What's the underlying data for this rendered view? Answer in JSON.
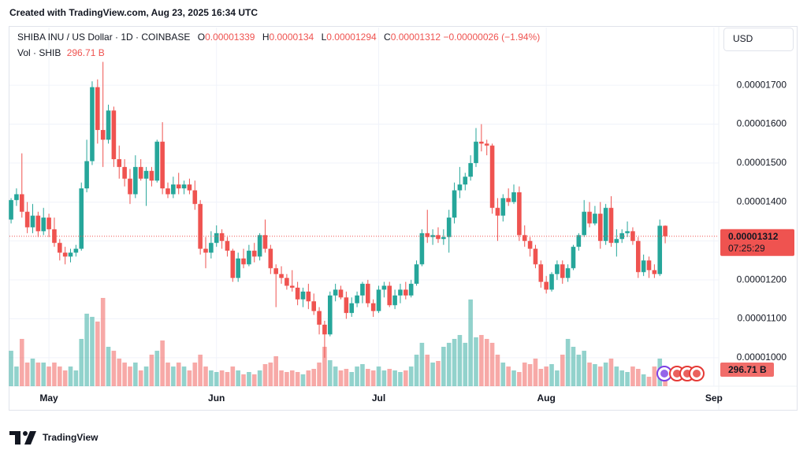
{
  "watermark": "Created with TradingView.com, Aug 23, 2025 16:34 UTC",
  "brand": "TradingView",
  "currency_button": "USD",
  "chart_data": {
    "type": "candlestick",
    "title": "SHIBA INU / US Dollar · 1D · COINBASE",
    "ohlc_labels": [
      "O",
      "H",
      "L",
      "C"
    ],
    "change": "−0.00000026 (−1.94%)",
    "countdown": "07:25:29",
    "up_color": "#26a69a",
    "down_color": "#ef5350",
    "xlim": [
      -0.3,
      130.9
    ],
    "xticks": [
      {
        "value": 7,
        "label": "May"
      },
      {
        "value": 38,
        "label": "Jun"
      },
      {
        "value": 68,
        "label": "Jul"
      },
      {
        "value": 99,
        "label": "Aug"
      },
      {
        "value": 130,
        "label": "Sep"
      }
    ],
    "ylim": [
      9.27e-06,
      1.848e-05
    ],
    "yticks": [
      {
        "value": 1e-05,
        "label": "0.00001000"
      },
      {
        "value": 1.1e-05,
        "label": "0.00001100"
      },
      {
        "value": 1.2e-05,
        "label": "0.00001200"
      },
      {
        "value": 1.3e-05,
        "label": "0.00001300"
      },
      {
        "value": 1.4e-05,
        "label": "0.00001400"
      },
      {
        "value": 1.5e-05,
        "label": "0.00001500"
      },
      {
        "value": 1.6e-05,
        "label": "0.00001600"
      },
      {
        "value": 1.7e-05,
        "label": "0.00001700"
      }
    ],
    "grid": true,
    "open": [
      1.355e-05,
      1.405e-05,
      1.42e-05,
      1.375e-05,
      1.335e-05,
      1.365e-05,
      1.325e-05,
      1.36e-05,
      1.33e-05,
      1.295e-05,
      1.27e-05,
      1.26e-05,
      1.27e-05,
      1.28e-05,
      1.435e-05,
      1.505e-05,
      1.695e-05,
      1.585e-05,
      1.56e-05,
      1.635e-05,
      1.51e-05,
      1.49e-05,
      1.46e-05,
      1.42e-05,
      1.49e-05,
      1.46e-05,
      1.48e-05,
      1.455e-05,
      1.555e-05,
      1.435e-05,
      1.42e-05,
      1.445e-05,
      1.435e-05,
      1.445e-05,
      1.43e-05,
      1.395e-05,
      1.28e-05,
      1.27e-05,
      1.295e-05,
      1.32e-05,
      1.3e-05,
      1.275e-05,
      1.205e-05,
      1.255e-05,
      1.24e-05,
      1.275e-05,
      1.26e-05,
      1.315e-05,
      1.28e-05,
      1.23e-05,
      1.215e-05,
      1.205e-05,
      1.185e-05,
      1.18e-05,
      1.15e-05,
      1.17e-05,
      1.145e-05,
      1.12e-05,
      1.085e-05,
      1.06e-05,
      1.16e-05,
      1.175e-05,
      1.155e-05,
      1.115e-05,
      1.14e-05,
      1.16e-05,
      1.19e-05,
      1.14e-05,
      1.12e-05,
      1.175e-05,
      1.185e-05,
      1.135e-05,
      1.16e-05,
      1.175e-05,
      1.16e-05,
      1.19e-05,
      1.24e-05,
      1.32e-05,
      1.31e-05,
      1.315e-05,
      1.305e-05,
      1.31e-05,
      1.36e-05,
      1.43e-05,
      1.445e-05,
      1.465e-05,
      1.5e-05,
      1.555e-05,
      1.55e-05,
      1.545e-05,
      1.385e-05,
      1.365e-05,
      1.41e-05,
      1.4e-05,
      1.425e-05,
      1.315e-05,
      1.3e-05,
      1.28e-05,
      1.24e-05,
      1.195e-05,
      1.175e-05,
      1.215e-05,
      1.24e-05,
      1.205e-05,
      1.23e-05,
      1.285e-05,
      1.315e-05,
      1.375e-05,
      1.345e-05,
      1.37e-05,
      1.3e-05,
      1.385e-05,
      1.295e-05,
      1.305e-05,
      1.32e-05,
      1.325e-05,
      1.3e-05,
      1.22e-05,
      1.25e-05,
      1.225e-05,
      1.215e-05,
      1.339e-05
    ],
    "high": [
      1.41e-05,
      1.435e-05,
      1.525e-05,
      1.4e-05,
      1.395e-05,
      1.375e-05,
      1.385e-05,
      1.37e-05,
      1.36e-05,
      1.305e-05,
      1.285e-05,
      1.28e-05,
      1.29e-05,
      1.45e-05,
      1.56e-05,
      1.71e-05,
      1.715e-05,
      1.76e-05,
      1.65e-05,
      1.645e-05,
      1.545e-05,
      1.51e-05,
      1.485e-05,
      1.52e-05,
      1.51e-05,
      1.49e-05,
      1.49e-05,
      1.56e-05,
      1.605e-05,
      1.45e-05,
      1.465e-05,
      1.475e-05,
      1.455e-05,
      1.46e-05,
      1.455e-05,
      1.405e-05,
      1.31e-05,
      1.325e-05,
      1.34e-05,
      1.33e-05,
      1.31e-05,
      1.28e-05,
      1.27e-05,
      1.28e-05,
      1.29e-05,
      1.295e-05,
      1.32e-05,
      1.355e-05,
      1.29e-05,
      1.24e-05,
      1.235e-05,
      1.215e-05,
      1.225e-05,
      1.195e-05,
      1.18e-05,
      1.19e-05,
      1.165e-05,
      1.13e-05,
      1.095e-05,
      1.17e-05,
      1.19e-05,
      1.185e-05,
      1.17e-05,
      1.155e-05,
      1.17e-05,
      1.195e-05,
      1.2e-05,
      1.15e-05,
      1.185e-05,
      1.195e-05,
      1.195e-05,
      1.175e-05,
      1.19e-05,
      1.195e-05,
      1.2e-05,
      1.25e-05,
      1.33e-05,
      1.38e-05,
      1.33e-05,
      1.335e-05,
      1.33e-05,
      1.38e-05,
      1.45e-05,
      1.49e-05,
      1.475e-05,
      1.52e-05,
      1.59e-05,
      1.6e-05,
      1.56e-05,
      1.55e-05,
      1.41e-05,
      1.42e-05,
      1.435e-05,
      1.445e-05,
      1.44e-05,
      1.34e-05,
      1.31e-05,
      1.29e-05,
      1.25e-05,
      1.21e-05,
      1.22e-05,
      1.25e-05,
      1.25e-05,
      1.24e-05,
      1.29e-05,
      1.32e-05,
      1.405e-05,
      1.4e-05,
      1.39e-05,
      1.4e-05,
      1.395e-05,
      1.415e-05,
      1.33e-05,
      1.33e-05,
      1.35e-05,
      1.335e-05,
      1.31e-05,
      1.265e-05,
      1.26e-05,
      1.24e-05,
      1.355e-05,
      1.34e-05
    ],
    "low": [
      1.345e-05,
      1.39e-05,
      1.36e-05,
      1.32e-05,
      1.32e-05,
      1.31e-05,
      1.315e-05,
      1.31e-05,
      1.285e-05,
      1.25e-05,
      1.24e-05,
      1.245e-05,
      1.26e-05,
      1.275e-05,
      1.425e-05,
      1.495e-05,
      1.55e-05,
      1.49e-05,
      1.55e-05,
      1.49e-05,
      1.46e-05,
      1.44e-05,
      1.395e-05,
      1.41e-05,
      1.455e-05,
      1.39e-05,
      1.44e-05,
      1.45e-05,
      1.42e-05,
      1.41e-05,
      1.41e-05,
      1.42e-05,
      1.42e-05,
      1.42e-05,
      1.38e-05,
      1.265e-05,
      1.23e-05,
      1.255e-05,
      1.285e-05,
      1.28e-05,
      1.26e-05,
      1.195e-05,
      1.195e-05,
      1.23e-05,
      1.235e-05,
      1.245e-05,
      1.25e-05,
      1.27e-05,
      1.215e-05,
      1.13e-05,
      1.19e-05,
      1.175e-05,
      1.17e-05,
      1.135e-05,
      1.13e-05,
      1.125e-05,
      1.11e-05,
      1.06e-05,
      1e-05,
      1.055e-05,
      1.145e-05,
      1.15e-05,
      1.1e-05,
      1.105e-05,
      1.13e-05,
      1.14e-05,
      1.13e-05,
      1.105e-05,
      1.115e-05,
      1.155e-05,
      1.13e-05,
      1.125e-05,
      1.14e-05,
      1.15e-05,
      1.155e-05,
      1.185e-05,
      1.235e-05,
      1.295e-05,
      1.29e-05,
      1.295e-05,
      1.29e-05,
      1.27e-05,
      1.345e-05,
      1.41e-05,
      1.43e-05,
      1.455e-05,
      1.49e-05,
      1.53e-05,
      1.52e-05,
      1.37e-05,
      1.3e-05,
      1.35e-05,
      1.39e-05,
      1.395e-05,
      1.3e-05,
      1.285e-05,
      1.26e-05,
      1.23e-05,
      1.18e-05,
      1.165e-05,
      1.17e-05,
      1.2e-05,
      1.19e-05,
      1.195e-05,
      1.225e-05,
      1.275e-05,
      1.31e-05,
      1.335e-05,
      1.34e-05,
      1.28e-05,
      1.29e-05,
      1.285e-05,
      1.26e-05,
      1.295e-05,
      1.31e-05,
      1.29e-05,
      1.205e-05,
      1.21e-05,
      1.205e-05,
      1.205e-05,
      1.21e-05,
      1.294e-05
    ],
    "close": [
      1.405e-05,
      1.42e-05,
      1.375e-05,
      1.335e-05,
      1.365e-05,
      1.325e-05,
      1.36e-05,
      1.33e-05,
      1.295e-05,
      1.27e-05,
      1.26e-05,
      1.27e-05,
      1.28e-05,
      1.435e-05,
      1.505e-05,
      1.695e-05,
      1.585e-05,
      1.56e-05,
      1.635e-05,
      1.51e-05,
      1.49e-05,
      1.46e-05,
      1.42e-05,
      1.49e-05,
      1.46e-05,
      1.48e-05,
      1.455e-05,
      1.555e-05,
      1.435e-05,
      1.42e-05,
      1.445e-05,
      1.435e-05,
      1.445e-05,
      1.43e-05,
      1.395e-05,
      1.28e-05,
      1.27e-05,
      1.295e-05,
      1.32e-05,
      1.3e-05,
      1.275e-05,
      1.205e-05,
      1.255e-05,
      1.24e-05,
      1.275e-05,
      1.26e-05,
      1.315e-05,
      1.28e-05,
      1.23e-05,
      1.215e-05,
      1.205e-05,
      1.185e-05,
      1.18e-05,
      1.15e-05,
      1.17e-05,
      1.145e-05,
      1.12e-05,
      1.085e-05,
      1.06e-05,
      1.16e-05,
      1.175e-05,
      1.155e-05,
      1.115e-05,
      1.14e-05,
      1.16e-05,
      1.19e-05,
      1.14e-05,
      1.12e-05,
      1.175e-05,
      1.185e-05,
      1.135e-05,
      1.16e-05,
      1.175e-05,
      1.16e-05,
      1.19e-05,
      1.24e-05,
      1.32e-05,
      1.31e-05,
      1.315e-05,
      1.305e-05,
      1.31e-05,
      1.36e-05,
      1.43e-05,
      1.445e-05,
      1.465e-05,
      1.5e-05,
      1.555e-05,
      1.55e-05,
      1.545e-05,
      1.385e-05,
      1.365e-05,
      1.41e-05,
      1.4e-05,
      1.425e-05,
      1.315e-05,
      1.3e-05,
      1.28e-05,
      1.24e-05,
      1.195e-05,
      1.175e-05,
      1.215e-05,
      1.24e-05,
      1.205e-05,
      1.23e-05,
      1.285e-05,
      1.315e-05,
      1.375e-05,
      1.345e-05,
      1.37e-05,
      1.3e-05,
      1.385e-05,
      1.295e-05,
      1.305e-05,
      1.32e-05,
      1.325e-05,
      1.3e-05,
      1.22e-05,
      1.25e-05,
      1.225e-05,
      1.215e-05,
      1.339e-05,
      1.312e-05
    ],
    "volume": {
      "name": "Vol · SHIB",
      "last_label": "296.71 B",
      "values": [
        562,
        312,
        750,
        375,
        438,
        375,
        375,
        312,
        375,
        312,
        250,
        312,
        250,
        750,
        1150,
        1100,
        1025,
        1400,
        625,
        562,
        438,
        375,
        312,
        375,
        250,
        312,
        500,
        562,
        725,
        375,
        312,
        375,
        312,
        250,
        375,
        500,
        312,
        250,
        225,
        250,
        225,
        312,
        250,
        188,
        225,
        188,
        250,
        350,
        375,
        475,
        250,
        225,
        250,
        225,
        188,
        250,
        275,
        375,
        625,
        412,
        312,
        250,
        275,
        225,
        312,
        350,
        275,
        250,
        312,
        250,
        275,
        250,
        225,
        250,
        312,
        500,
        688,
        500,
        375,
        400,
        625,
        688,
        750,
        812,
        688,
        1375,
        775,
        812,
        750,
        688,
        500,
        375,
        312,
        250,
        225,
        375,
        350,
        438,
        275,
        312,
        350,
        250,
        500,
        750,
        625,
        500,
        562,
        375,
        350,
        312,
        375,
        438,
        312,
        250,
        225,
        312,
        275,
        188,
        150,
        312,
        438,
        296.71
      ]
    }
  }
}
